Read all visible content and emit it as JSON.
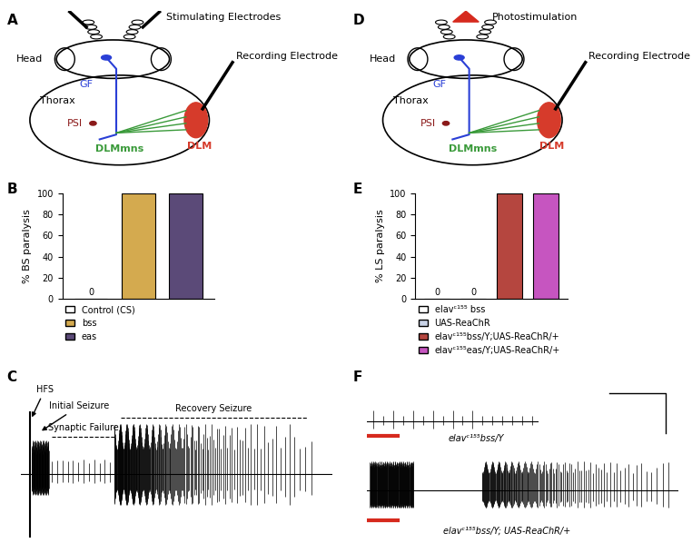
{
  "panel_labels": [
    "A",
    "B",
    "C",
    "D",
    "E",
    "F"
  ],
  "diagram_A": {
    "head": "Head",
    "thorax": "Thorax",
    "neuron": "GF",
    "interneuron": "PSI",
    "motor_neurons": "DLMmns",
    "muscle": "DLM",
    "stimulus": "Stimulating Electrodes",
    "recording": "Recording Electrode"
  },
  "diagram_D": {
    "head": "Head",
    "thorax": "Thorax",
    "neuron": "GF",
    "interneuron": "PSI",
    "motor_neurons": "DLMmns",
    "muscle": "DLM",
    "stimulus": "Photostimulation",
    "recording": "Recording Electrode"
  },
  "chart_data": [
    {
      "type": "bar",
      "y_label": "% BS paralysis",
      "categories": [
        "Control (CS)",
        "bss",
        "eas"
      ],
      "values": [
        0,
        100,
        100
      ],
      "colors": [
        "#ffffff",
        "#d4aa4f",
        "#5b4a78"
      ],
      "data_labels": true,
      "value_labels": [
        "0",
        null,
        null
      ],
      "ylim": [
        0,
        100
      ],
      "yticks": [
        0,
        20,
        40,
        60,
        80,
        100
      ],
      "tick_labels": "y",
      "legend": "upper left",
      "grid": false
    },
    {
      "type": "bar",
      "y_label": "% LS paralysis",
      "categories": [
        "elavᶜ¹⁵⁵ bss",
        "UAS-ReaChR",
        "elavᶜ¹⁵⁵bss/Y;UAS-ReaChR/+",
        "elavᶜ¹⁵⁵eas/Y;UAS-ReaChR/+"
      ],
      "values": [
        0,
        0,
        100,
        100
      ],
      "colors": [
        "#ffffff",
        "#c9d3e6",
        "#b5463f",
        "#c655c0"
      ],
      "data_labels": true,
      "value_labels": [
        "0",
        "0",
        null,
        null
      ],
      "ylim": [
        0,
        100
      ],
      "yticks": [
        0,
        20,
        40,
        60,
        80,
        100
      ],
      "tick_labels": "y",
      "legend": "upper left",
      "grid": false
    }
  ],
  "trace_C": {
    "stimulus": "HFS",
    "phases": [
      "Initial Seizure",
      "Synaptic Failure",
      "Recovery Seizure"
    ]
  },
  "trace_F": {
    "traces": [
      "elavᶜ¹⁵⁵bss/Y",
      "elavᶜ¹⁵⁵bss/Y; UAS-ReaChR/+"
    ]
  }
}
